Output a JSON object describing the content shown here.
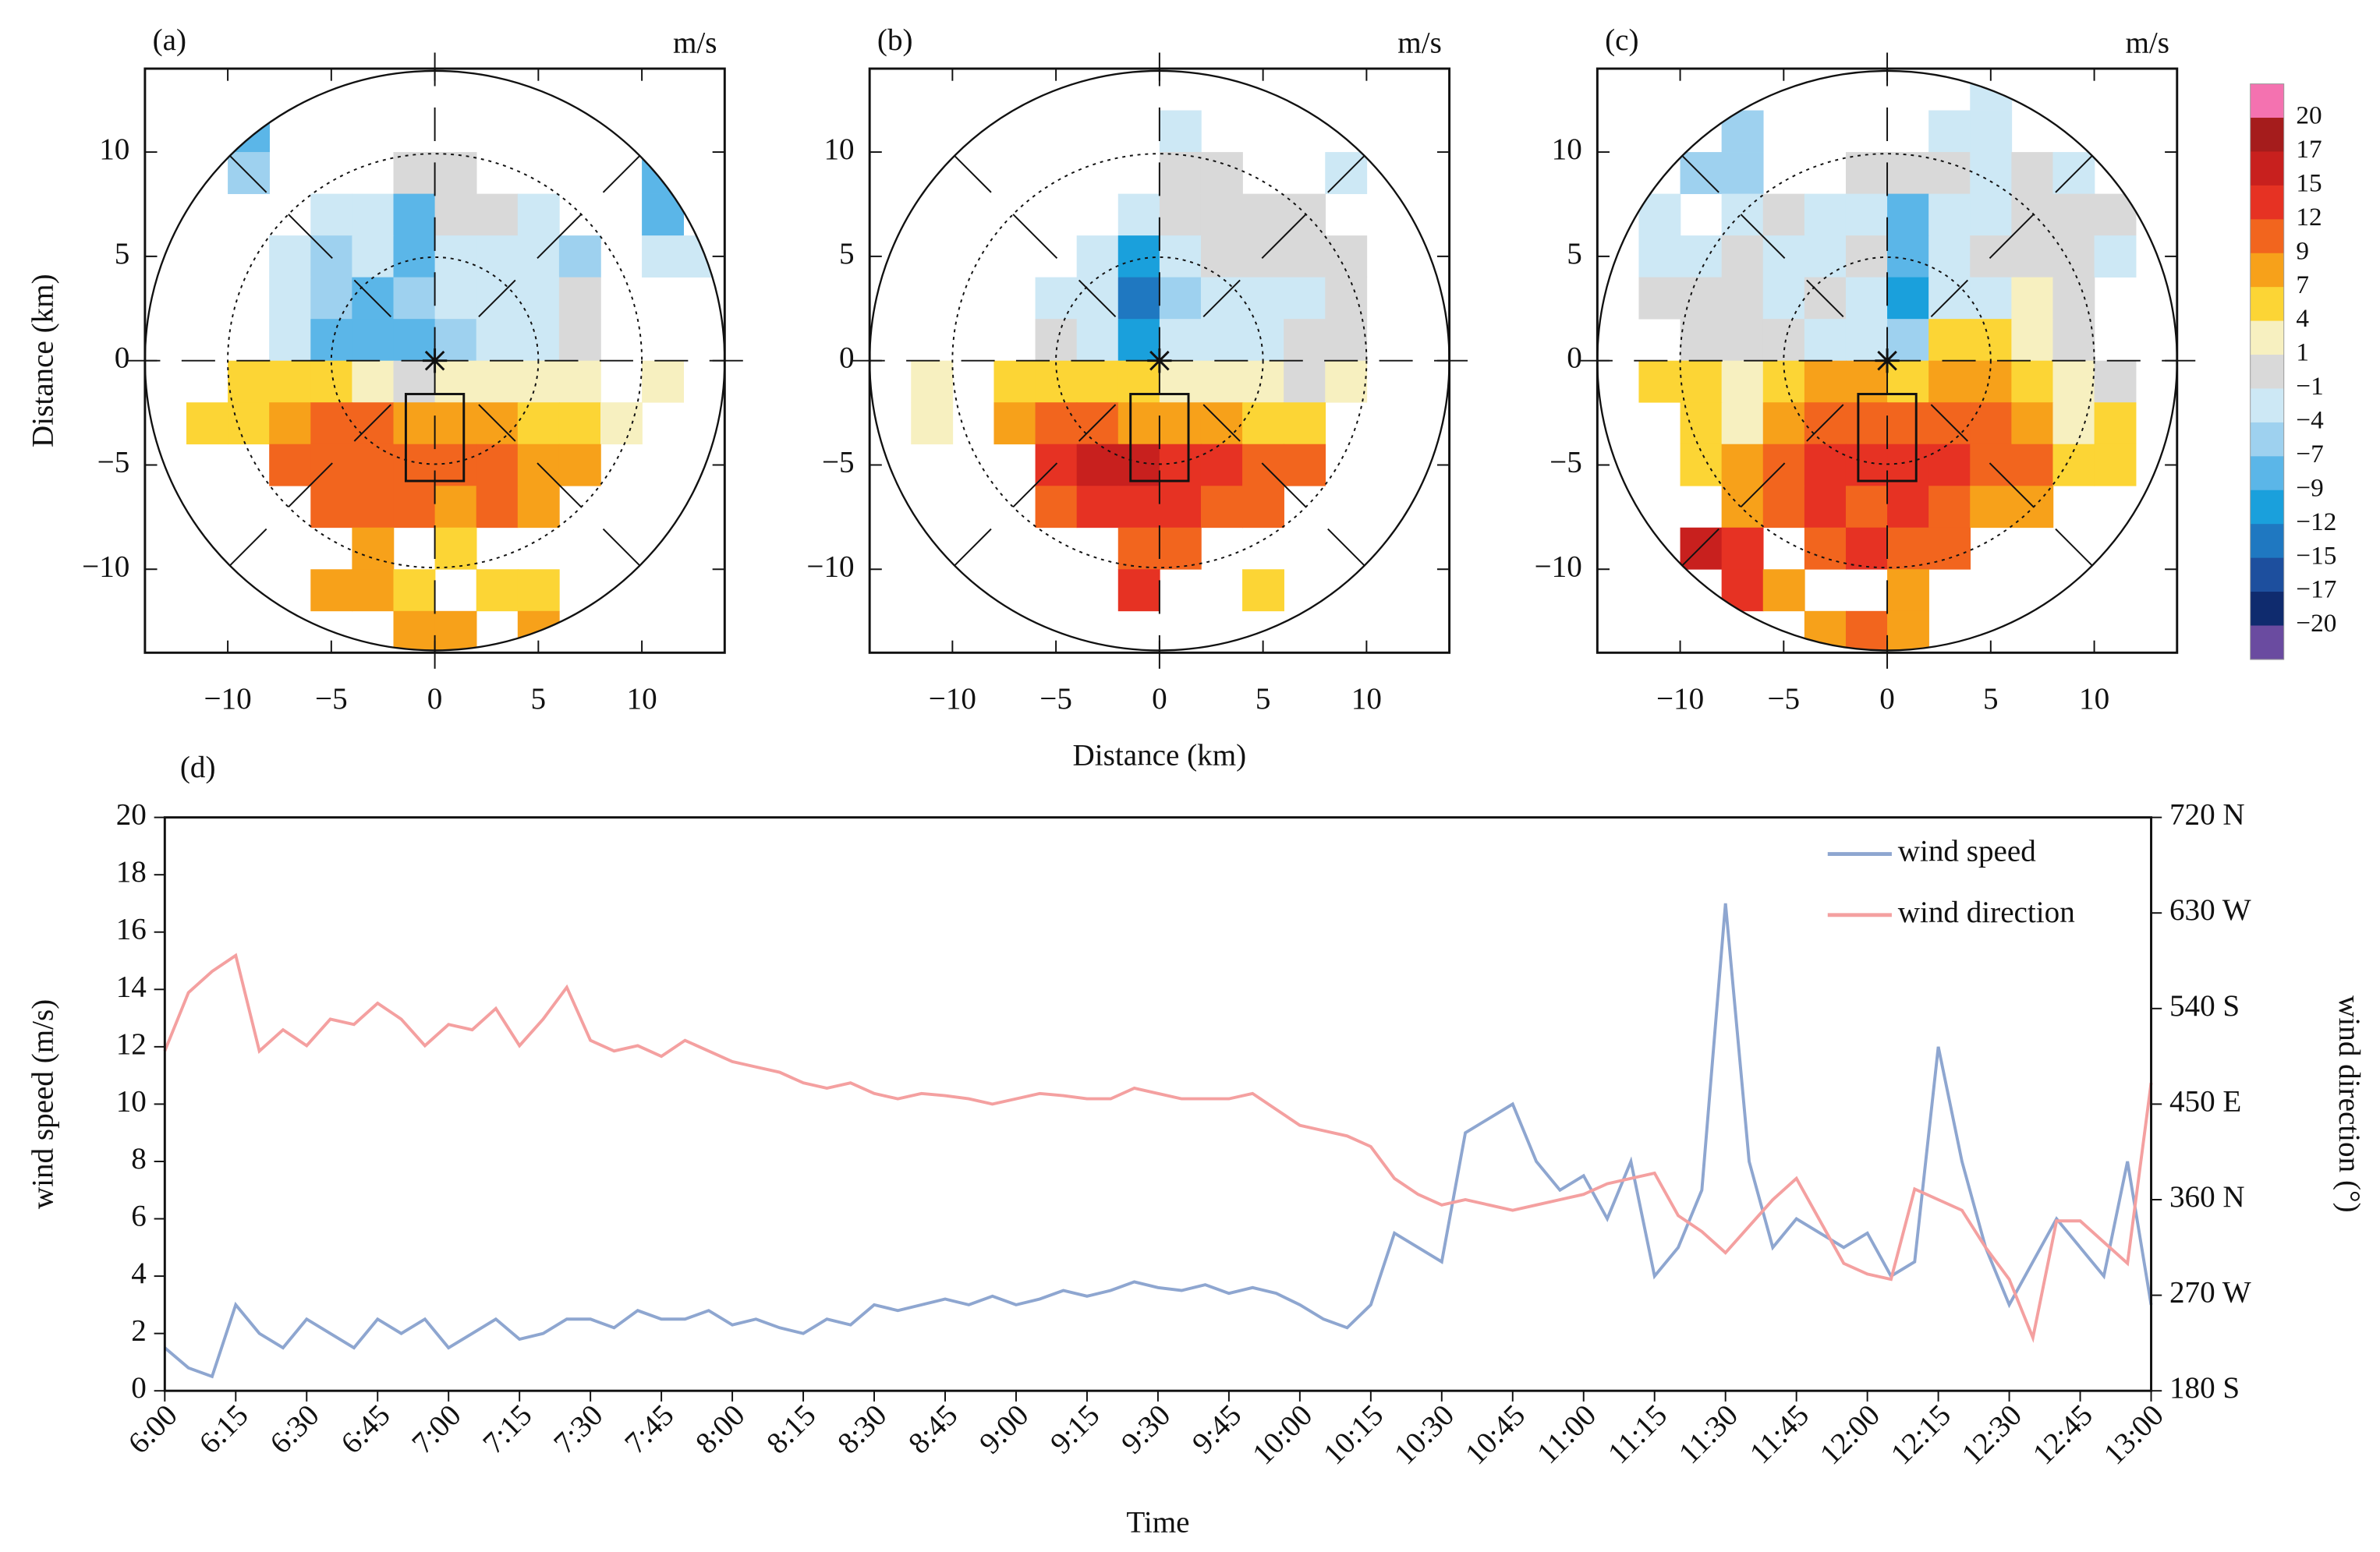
{
  "chart_data": [
    {
      "type": "heatmap",
      "label": "(a)",
      "unit": "m/s",
      "ylabel": "Distance (km)",
      "xlim": [
        -14,
        14
      ],
      "ylim": [
        -14,
        14
      ],
      "xticks": [
        {
          "value": -10,
          "label": "−10"
        },
        {
          "value": -5,
          "label": "−5"
        },
        0,
        5,
        10
      ],
      "yticks": [
        10,
        5,
        0,
        {
          "value": -5,
          "label": "−5"
        },
        {
          "value": -10,
          "label": "−10"
        }
      ],
      "x": [
        -13,
        -11,
        -9,
        -7,
        -5,
        -3,
        -1,
        1,
        3,
        5,
        7,
        9,
        11,
        13
      ],
      "y": [
        13,
        11,
        9,
        7,
        5,
        3,
        1,
        -1,
        -3,
        -5,
        -7,
        -9,
        -11,
        -13
      ],
      "values": [
        [
          null,
          null,
          null,
          null,
          null,
          null,
          null,
          null,
          null,
          null,
          null,
          null,
          null,
          null
        ],
        [
          null,
          null,
          -9,
          null,
          null,
          null,
          null,
          null,
          null,
          null,
          null,
          null,
          null,
          null
        ],
        [
          null,
          null,
          -7,
          null,
          null,
          null,
          -1,
          -1,
          null,
          null,
          null,
          null,
          -9,
          null
        ],
        [
          null,
          null,
          null,
          null,
          -4,
          -4,
          -9,
          -1,
          -1,
          -4,
          null,
          null,
          -9,
          null
        ],
        [
          null,
          null,
          null,
          -4,
          -7,
          -4,
          -9,
          -4,
          -4,
          -4,
          -7,
          null,
          -4,
          -4
        ],
        [
          null,
          null,
          null,
          -4,
          -7,
          -9,
          -7,
          -4,
          -4,
          -4,
          -1,
          null,
          null,
          null
        ],
        [
          null,
          null,
          null,
          -4,
          -9,
          -9,
          -9,
          -7,
          -4,
          -4,
          -1,
          null,
          null,
          null
        ],
        [
          null,
          null,
          4,
          4,
          4,
          1,
          -1,
          1,
          1,
          1,
          1,
          null,
          1,
          null
        ],
        [
          null,
          4,
          4,
          7,
          9,
          9,
          7,
          7,
          7,
          4,
          4,
          1,
          null,
          null
        ],
        [
          null,
          null,
          null,
          9,
          9,
          9,
          9,
          9,
          9,
          7,
          7,
          null,
          null,
          null
        ],
        [
          null,
          null,
          null,
          null,
          9,
          9,
          9,
          7,
          9,
          7,
          null,
          null,
          null,
          null
        ],
        [
          null,
          null,
          null,
          null,
          null,
          7,
          null,
          4,
          null,
          null,
          null,
          null,
          null,
          null
        ],
        [
          null,
          null,
          null,
          null,
          7,
          7,
          4,
          null,
          4,
          4,
          null,
          null,
          null,
          null
        ],
        [
          null,
          null,
          null,
          null,
          null,
          null,
          7,
          7,
          null,
          7,
          null,
          null,
          null,
          null
        ]
      ]
    },
    {
      "type": "heatmap",
      "label": "(b)",
      "unit": "m/s",
      "xlabel": "Distance (km)",
      "xlim": [
        -14,
        14
      ],
      "ylim": [
        -14,
        14
      ],
      "xticks": [
        {
          "value": -10,
          "label": "−10"
        },
        {
          "value": -5,
          "label": "−5"
        },
        0,
        5,
        10
      ],
      "yticks": [
        10,
        5,
        0,
        {
          "value": -5,
          "label": "−5"
        },
        {
          "value": -10,
          "label": "−10"
        }
      ],
      "x": [
        -13,
        -11,
        -9,
        -7,
        -5,
        -3,
        -1,
        1,
        3,
        5,
        7,
        9,
        11,
        13
      ],
      "y": [
        13,
        11,
        9,
        7,
        5,
        3,
        1,
        -1,
        -3,
        -5,
        -7,
        -9,
        -11,
        -13
      ],
      "values": [
        [
          null,
          null,
          null,
          null,
          null,
          null,
          null,
          null,
          null,
          null,
          null,
          null,
          null,
          null
        ],
        [
          null,
          null,
          null,
          null,
          null,
          null,
          null,
          -4,
          null,
          null,
          null,
          null,
          null,
          null
        ],
        [
          null,
          null,
          null,
          null,
          null,
          null,
          null,
          -1,
          -1,
          null,
          null,
          -4,
          null,
          null
        ],
        [
          null,
          null,
          null,
          null,
          null,
          null,
          -4,
          -1,
          -1,
          -1,
          -1,
          null,
          null,
          null
        ],
        [
          null,
          null,
          null,
          null,
          null,
          -4,
          -12,
          -4,
          -1,
          -1,
          -1,
          -1,
          null,
          null
        ],
        [
          null,
          null,
          null,
          null,
          -4,
          -4,
          -15,
          -7,
          -4,
          -4,
          -4,
          -1,
          null,
          null
        ],
        [
          null,
          null,
          null,
          null,
          -1,
          -4,
          -12,
          -4,
          -4,
          -4,
          -1,
          -1,
          null,
          null
        ],
        [
          null,
          1,
          null,
          4,
          4,
          4,
          4,
          1,
          1,
          1,
          -1,
          1,
          null,
          null
        ],
        [
          null,
          1,
          null,
          7,
          9,
          9,
          7,
          7,
          7,
          4,
          4,
          null,
          null,
          null
        ],
        [
          null,
          null,
          null,
          null,
          12,
          15,
          15,
          12,
          12,
          9,
          9,
          null,
          null,
          null
        ],
        [
          null,
          null,
          null,
          null,
          9,
          12,
          12,
          12,
          9,
          9,
          null,
          null,
          null,
          null
        ],
        [
          null,
          null,
          null,
          null,
          null,
          null,
          9,
          9,
          null,
          null,
          null,
          null,
          null,
          null
        ],
        [
          null,
          null,
          null,
          null,
          null,
          null,
          12,
          null,
          null,
          4,
          null,
          null,
          null,
          null
        ],
        [
          null,
          null,
          null,
          null,
          null,
          null,
          null,
          null,
          null,
          null,
          null,
          null,
          null,
          null
        ]
      ]
    },
    {
      "type": "heatmap",
      "label": "(c)",
      "unit": "m/s",
      "xlim": [
        -14,
        14
      ],
      "ylim": [
        -14,
        14
      ],
      "xticks": [
        {
          "value": -10,
          "label": "−10"
        },
        {
          "value": -5,
          "label": "−5"
        },
        0,
        5,
        10
      ],
      "yticks": [
        10,
        5,
        0,
        {
          "value": -5,
          "label": "−5"
        },
        {
          "value": -10,
          "label": "−10"
        }
      ],
      "x": [
        -13,
        -11,
        -9,
        -7,
        -5,
        -3,
        -1,
        1,
        3,
        5,
        7,
        9,
        11,
        13
      ],
      "y": [
        13,
        11,
        9,
        7,
        5,
        3,
        1,
        -1,
        -3,
        -5,
        -7,
        -9,
        -11,
        -13
      ],
      "values": [
        [
          null,
          null,
          null,
          null,
          null,
          null,
          null,
          null,
          null,
          -4,
          null,
          null,
          null,
          null
        ],
        [
          null,
          null,
          null,
          -7,
          null,
          null,
          null,
          null,
          -4,
          -4,
          null,
          null,
          null,
          null
        ],
        [
          null,
          null,
          -7,
          -7,
          null,
          null,
          -1,
          -1,
          -1,
          -4,
          -1,
          -4,
          null,
          null
        ],
        [
          null,
          -4,
          null,
          -4,
          -1,
          -4,
          -4,
          -9,
          -4,
          -4,
          -1,
          -1,
          -1,
          null
        ],
        [
          null,
          -4,
          -4,
          -1,
          -4,
          -4,
          -1,
          -9,
          -4,
          -1,
          -1,
          -1,
          -4,
          null
        ],
        [
          null,
          -1,
          -1,
          -1,
          -4,
          -1,
          -4,
          -12,
          -4,
          -4,
          1,
          -1,
          null,
          null
        ],
        [
          null,
          null,
          -1,
          -1,
          -1,
          -4,
          -4,
          -7,
          4,
          4,
          1,
          -1,
          null,
          null
        ],
        [
          null,
          4,
          4,
          1,
          4,
          7,
          7,
          4,
          7,
          7,
          4,
          1,
          -1,
          null
        ],
        [
          null,
          null,
          4,
          1,
          7,
          9,
          9,
          9,
          9,
          9,
          7,
          1,
          4,
          null
        ],
        [
          null,
          null,
          4,
          7,
          9,
          12,
          12,
          12,
          12,
          9,
          9,
          4,
          4,
          null
        ],
        [
          null,
          null,
          null,
          7,
          9,
          12,
          9,
          12,
          9,
          7,
          7,
          null,
          null,
          null
        ],
        [
          null,
          null,
          15,
          12,
          null,
          9,
          12,
          9,
          9,
          null,
          null,
          null,
          null,
          null
        ],
        [
          null,
          null,
          null,
          12,
          7,
          null,
          null,
          7,
          null,
          null,
          null,
          null,
          null,
          null
        ],
        [
          null,
          null,
          null,
          null,
          null,
          7,
          9,
          7,
          null,
          null,
          null,
          null,
          null,
          null
        ]
      ],
      "colorbar": {
        "ticks": [
          20,
          17,
          15,
          12,
          9,
          7,
          4,
          1,
          {
            "value": -1,
            "label": "−1"
          },
          {
            "value": -4,
            "label": "−4"
          },
          {
            "value": -7,
            "label": "−7"
          },
          {
            "value": -9,
            "label": "−9"
          },
          {
            "value": -12,
            "label": "−12"
          },
          {
            "value": -15,
            "label": "−15"
          },
          {
            "value": -17,
            "label": "−17"
          },
          {
            "value": -20,
            "label": "−20"
          }
        ],
        "colors": [
          "#f472b0",
          "#a51c1c",
          "#c8201e",
          "#e63223",
          "#f2651e",
          "#f7a11a",
          "#fcd535",
          "#f7f0c0",
          "#d9d9d9",
          "#cde8f5",
          "#9ed1ef",
          "#5bb6e8",
          "#1aa0dc",
          "#1f78c1",
          "#1d4f9e",
          "#0f2b6e",
          "#6a4ba0"
        ]
      }
    },
    {
      "type": "line",
      "label": "(d)",
      "xlabel": "Time",
      "ylabel": "wind speed (m/s)",
      "y2label": "wind direction (°)",
      "legend": "upper right",
      "xlim": [
        "6:00",
        "13:00"
      ],
      "ylim": [
        0,
        20
      ],
      "y2lim": [
        180,
        720
      ],
      "xticks": [
        "6:00",
        "6:15",
        "6:30",
        "6:45",
        "7:00",
        "7:15",
        "7:30",
        "7:45",
        "8:00",
        "8:15",
        "8:30",
        "8:45",
        "9:00",
        "9:15",
        "9:30",
        "9:45",
        "10:00",
        "10:15",
        "10:30",
        "10:45",
        "11:00",
        "11:15",
        "11:30",
        "11:45",
        "12:00",
        "12:15",
        "12:30",
        "12:45",
        "13:00"
      ],
      "yticks": [
        0,
        2,
        4,
        6,
        8,
        10,
        12,
        14,
        16,
        18,
        20
      ],
      "y2ticks": [
        {
          "value": 180,
          "label": "180 S"
        },
        {
          "value": 270,
          "label": "270 W"
        },
        {
          "value": 360,
          "label": "360 N"
        },
        {
          "value": 450,
          "label": "450 E"
        },
        {
          "value": 540,
          "label": "540 S"
        },
        {
          "value": 630,
          "label": "630 W"
        },
        {
          "value": 720,
          "label": "720 N"
        }
      ],
      "x": [
        "6:00",
        "6:05",
        "6:10",
        "6:15",
        "6:20",
        "6:25",
        "6:30",
        "6:35",
        "6:40",
        "6:45",
        "6:50",
        "6:55",
        "7:00",
        "7:05",
        "7:10",
        "7:15",
        "7:20",
        "7:25",
        "7:30",
        "7:35",
        "7:40",
        "7:45",
        "7:50",
        "7:55",
        "8:00",
        "8:05",
        "8:10",
        "8:15",
        "8:20",
        "8:25",
        "8:30",
        "8:35",
        "8:40",
        "8:45",
        "8:50",
        "8:55",
        "9:00",
        "9:05",
        "9:10",
        "9:15",
        "9:20",
        "9:25",
        "9:30",
        "9:35",
        "9:40",
        "9:45",
        "9:50",
        "9:55",
        "10:00",
        "10:05",
        "10:10",
        "10:15",
        "10:20",
        "10:25",
        "10:30",
        "10:35",
        "10:40",
        "10:45",
        "10:50",
        "10:55",
        "11:00",
        "11:05",
        "11:10",
        "11:15",
        "11:20",
        "11:25",
        "11:30",
        "11:35",
        "11:40",
        "11:45",
        "11:50",
        "11:55",
        "12:00",
        "12:05",
        "12:10",
        "12:15",
        "12:20",
        "12:25",
        "12:30",
        "12:35",
        "12:40",
        "12:45",
        "12:50",
        "12:55",
        "13:00"
      ],
      "series": [
        {
          "name": "wind speed",
          "color": "#8ea6d0",
          "axis": "y",
          "values": [
            1.5,
            0.8,
            0.5,
            3,
            2,
            1.5,
            2.5,
            2,
            1.5,
            2.5,
            2,
            2.5,
            1.5,
            2,
            2.5,
            1.8,
            2,
            2.5,
            2.5,
            2.2,
            2.8,
            2.5,
            2.5,
            2.8,
            2.3,
            2.5,
            2.2,
            2,
            2.5,
            2.3,
            3,
            2.8,
            3,
            3.2,
            3,
            3.3,
            3,
            3.2,
            3.5,
            3.3,
            3.5,
            3.8,
            3.6,
            3.5,
            3.7,
            3.4,
            3.6,
            3.4,
            3,
            2.5,
            2.2,
            3,
            5.5,
            5,
            4.5,
            9,
            9.5,
            10,
            8,
            7,
            7.5,
            6,
            8,
            4,
            5,
            7,
            17,
            8,
            5,
            6,
            5.5,
            5,
            5.5,
            4,
            4.5,
            12,
            8,
            5,
            3,
            4.5,
            6,
            5,
            4,
            8,
            3
          ]
        },
        {
          "name": "wind direction",
          "color": "#f4a0a0",
          "axis": "y2",
          "values": [
            500,
            555,
            575,
            590,
            500,
            520,
            505,
            530,
            525,
            545,
            530,
            505,
            525,
            520,
            540,
            505,
            530,
            560,
            510,
            500,
            505,
            495,
            510,
            500,
            490,
            485,
            480,
            470,
            465,
            470,
            460,
            455,
            460,
            458,
            455,
            450,
            455,
            460,
            458,
            455,
            455,
            465,
            460,
            455,
            455,
            455,
            460,
            445,
            430,
            425,
            420,
            410,
            380,
            365,
            355,
            360,
            355,
            350,
            355,
            360,
            365,
            375,
            380,
            385,
            345,
            330,
            310,
            335,
            360,
            380,
            340,
            300,
            290,
            285,
            370,
            360,
            350,
            315,
            285,
            230,
            340,
            340,
            320,
            300,
            470
          ]
        }
      ]
    }
  ]
}
